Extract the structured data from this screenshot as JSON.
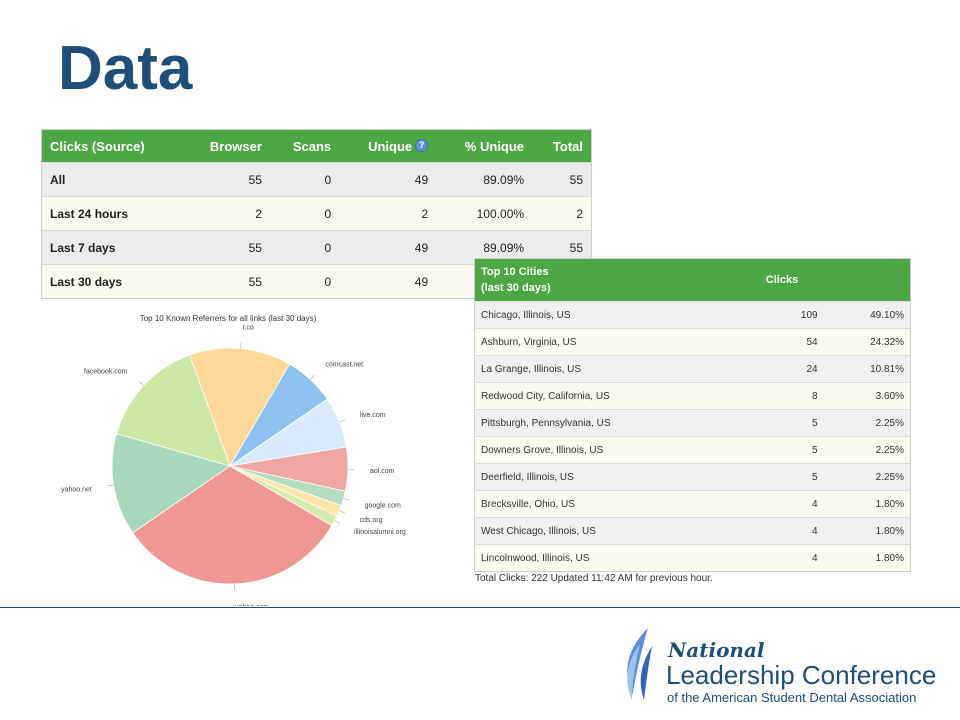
{
  "slide": {
    "title": "Data"
  },
  "clicks_table": {
    "headers": [
      "Clicks (Source)",
      "Browser",
      "Scans",
      "Unique",
      "% Unique",
      "Total"
    ],
    "rows": [
      [
        "All",
        "55",
        "0",
        "49",
        "89.09%",
        "55"
      ],
      [
        "Last 24 hours",
        "2",
        "0",
        "2",
        "100.00%",
        "2"
      ],
      [
        "Last 7 days",
        "55",
        "0",
        "49",
        "89.09%",
        "55"
      ],
      [
        "Last 30 days",
        "55",
        "0",
        "49",
        "",
        ""
      ]
    ]
  },
  "cities_table": {
    "header_line1": "Top 10 Cities",
    "header_line2": "(last 30 days)",
    "header_clicks": "Clicks",
    "rows": [
      [
        "Chicago, Illinois, US",
        "109",
        "49.10%"
      ],
      [
        "Ashburn, Virginia, US",
        "54",
        "24.32%"
      ],
      [
        "La Grange, Illinois, US",
        "24",
        "10.81%"
      ],
      [
        "Redwood City, California, US",
        "8",
        "3.60%"
      ],
      [
        "Pittsburgh, Pennsylvania, US",
        "5",
        "2.25%"
      ],
      [
        "Downers Grove, Illinois, US",
        "5",
        "2.25%"
      ],
      [
        "Deerfield, Illinois, US",
        "5",
        "2.25%"
      ],
      [
        "Brecksville, Ohio, US",
        "4",
        "1.80%"
      ],
      [
        "West Chicago, Illinois, US",
        "4",
        "1.80%"
      ],
      [
        "Lincolnwood, Illinois, US",
        "4",
        "1.80%"
      ]
    ],
    "footer": "Total Clicks: 222 Updated 11:42 AM for previous hour."
  },
  "chart_data": {
    "type": "pie",
    "title": "Top 10 Known Referrers for all links (last 30 days)",
    "slices": [
      {
        "label": "t.co",
        "value": 14,
        "color": "#fcd89a"
      },
      {
        "label": "comcast.net",
        "value": 7,
        "color": "#8ec0f0"
      },
      {
        "label": "live.com",
        "value": 7,
        "color": "#d8eafc"
      },
      {
        "label": "aol.com",
        "value": 6,
        "color": "#f0a6a3"
      },
      {
        "label": "google.com",
        "value": 2,
        "color": "#b6dcc2"
      },
      {
        "label": "cds.org",
        "value": 1.5,
        "color": "#fce5a8"
      },
      {
        "label": "illinoisalumni.org",
        "value": 1.5,
        "color": "#d9ecb0"
      },
      {
        "label": "yahoo.com",
        "value": 32,
        "color": "#ef9893"
      },
      {
        "label": "yahoo.net",
        "value": 14,
        "color": "#a9d8bc"
      },
      {
        "label": "facebook.com",
        "value": 15,
        "color": "#cde8a6"
      }
    ]
  },
  "logo": {
    "line1": "National",
    "line2": "Leadership Conference",
    "line3": "of the American Student Dental Association"
  }
}
